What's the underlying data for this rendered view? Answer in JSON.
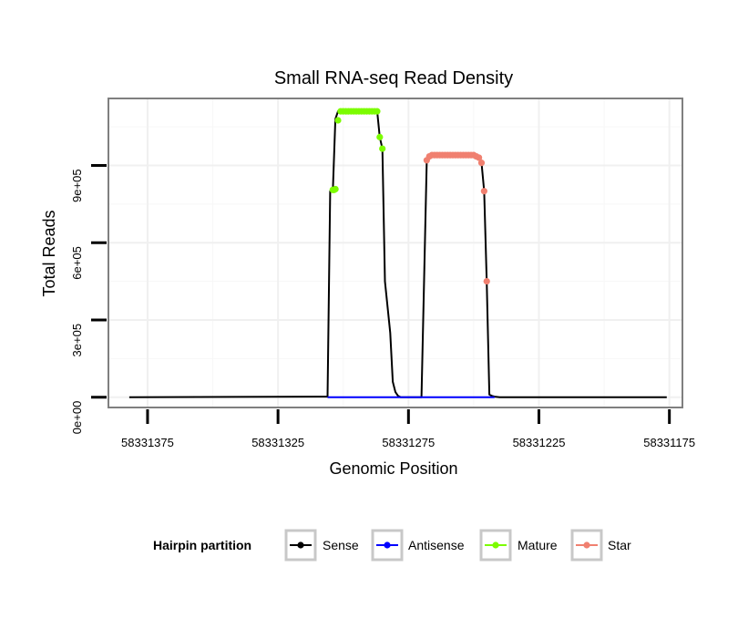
{
  "chart_data": {
    "type": "line",
    "title": "Small RNA-seq Read Density",
    "xlabel": "Genomic Position",
    "ylabel": "Total Reads",
    "x_reversed": true,
    "xlim": [
      58331390,
      58331170
    ],
    "ylim": [
      -40000,
      1160000
    ],
    "x_ticks": [
      58331375,
      58331325,
      58331275,
      58331225,
      58331175
    ],
    "x_tick_labels": [
      "58331375",
      "58331325",
      "58331275",
      "58331225",
      "58331175"
    ],
    "y_ticks": [
      0,
      300000,
      600000,
      900000
    ],
    "y_tick_labels": [
      "0e+00",
      "3e+05",
      "6e+05",
      "9e+05"
    ],
    "grid": true,
    "legend": {
      "title": "Hairpin partition",
      "position": "bottom",
      "entries": [
        {
          "label": "Sense",
          "color": "#000000"
        },
        {
          "label": "Antisense",
          "color": "#0000ff"
        },
        {
          "label": "Mature",
          "color": "#7cfc00"
        },
        {
          "label": "Star",
          "color": "#f08070"
        }
      ]
    },
    "series": [
      {
        "name": "Sense",
        "color": "#000000",
        "x": [
          58331382,
          58331310,
          58331306,
          58331305,
          58331304,
          58331303,
          58331302,
          58331301,
          58331300,
          58331299,
          58331298,
          58331297,
          58331296,
          58331295,
          58331294,
          58331293,
          58331292,
          58331291,
          58331290,
          58331289,
          58331288,
          58331287,
          58331286,
          58331285,
          58331284,
          58331283,
          58331282,
          58331281,
          58331280,
          58331279,
          58331278,
          58331276,
          58331270,
          58331268,
          58331267,
          58331266,
          58331265,
          58331264,
          58331263,
          58331262,
          58331261,
          58331260,
          58331259,
          58331258,
          58331257,
          58331256,
          58331255,
          58331254,
          58331253,
          58331252,
          58331251,
          58331250,
          58331249,
          58331248,
          58331247,
          58331246,
          58331245,
          58331244,
          58331243,
          58331242,
          58331240,
          58331176
        ],
        "y": [
          0,
          2000,
          2000,
          800000,
          800000,
          1080000,
          1110000,
          1110000,
          1110000,
          1110000,
          1110000,
          1110000,
          1110000,
          1110000,
          1110000,
          1110000,
          1110000,
          1110000,
          1110000,
          1110000,
          1110000,
          1110000,
          1010000,
          965000,
          450000,
          350000,
          250000,
          60000,
          20000,
          5000,
          0,
          0,
          0,
          920000,
          935000,
          940000,
          940000,
          940000,
          940000,
          940000,
          940000,
          940000,
          940000,
          940000,
          940000,
          940000,
          940000,
          940000,
          940000,
          940000,
          940000,
          940000,
          935000,
          930000,
          910000,
          800000,
          450000,
          10000,
          5000,
          2000,
          0,
          0
        ]
      },
      {
        "name": "Antisense",
        "color": "#0000ff",
        "x": [
          58331306,
          58331242
        ],
        "y": [
          0,
          0
        ]
      },
      {
        "name": "Mature",
        "color": "#7cfc00",
        "x": [
          58331304,
          58331303.5,
          58331303,
          58331302,
          58331301,
          58331300,
          58331299,
          58331298,
          58331297,
          58331296,
          58331295,
          58331294,
          58331293,
          58331292,
          58331291,
          58331290,
          58331289,
          58331288,
          58331287,
          58331286,
          58331285
        ],
        "y": [
          805000,
          805000,
          808000,
          1075000,
          1110000,
          1110000,
          1110000,
          1110000,
          1110000,
          1110000,
          1110000,
          1110000,
          1110000,
          1110000,
          1110000,
          1110000,
          1110000,
          1110000,
          1110000,
          1010000,
          965000
        ]
      },
      {
        "name": "Star",
        "color": "#f08070",
        "x": [
          58331268,
          58331267,
          58331266,
          58331265,
          58331264,
          58331263,
          58331262,
          58331261,
          58331260,
          58331259,
          58331258,
          58331257,
          58331256,
          58331255,
          58331254,
          58331253,
          58331252,
          58331251,
          58331250,
          58331249,
          58331248,
          58331247,
          58331246,
          58331245
        ],
        "y": [
          920000,
          935000,
          940000,
          940000,
          940000,
          940000,
          940000,
          940000,
          940000,
          940000,
          940000,
          940000,
          940000,
          940000,
          940000,
          940000,
          940000,
          940000,
          940000,
          935000,
          930000,
          910000,
          800000,
          450000
        ]
      }
    ]
  }
}
